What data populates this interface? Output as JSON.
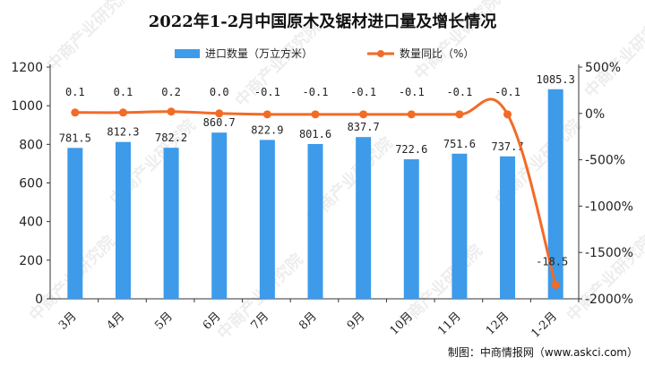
{
  "chart_data": {
    "type": "bar+line",
    "title": "2022年1-2月中国原木及锯材进口量及增长情况",
    "categories": [
      "3月",
      "4月",
      "5月",
      "6月",
      "7月",
      "8月",
      "9月",
      "10月",
      "11月",
      "12月",
      "1-2月"
    ],
    "series": [
      {
        "name": "进口数量（万立方米）",
        "type": "bar",
        "axis": "left",
        "values": [
          781.5,
          812.3,
          782.2,
          860.7,
          822.9,
          801.6,
          837.7,
          722.6,
          751.6,
          737.7,
          1085.3
        ],
        "labels": [
          "781.5",
          "812.3",
          "782.2",
          "860.7",
          "822.9",
          "801.6",
          "837.7",
          "722.6",
          "751.6",
          "737.7",
          "1085.3"
        ]
      },
      {
        "name": "数量同比（%）",
        "type": "line",
        "axis": "right",
        "values": [
          0.1,
          0.1,
          0.2,
          0.0,
          -0.1,
          -0.1,
          -0.1,
          -0.1,
          -0.1,
          -0.1,
          -18.5
        ],
        "labels": [
          "0.1",
          "0.1",
          "0.2",
          "0.0",
          "-0.1",
          "-0.1",
          "-0.1",
          "-0.1",
          "-0.1",
          "-0.1",
          "-18.5"
        ]
      }
    ],
    "y_left": {
      "min": 0,
      "max": 1200,
      "ticks": [
        "0",
        "200",
        "400",
        "600",
        "800",
        "1000",
        "1200"
      ]
    },
    "y_right": {
      "min": -20,
      "max": 5,
      "ticks": [
        "500%",
        "0%",
        "-500%",
        "-1000%",
        "-1500%",
        "-2000%"
      ]
    },
    "legend_position": "top",
    "grid": false
  },
  "source": "制图：中商情报网（www.askci.com）",
  "watermark": "中商产业研究院",
  "colors": {
    "bar": "#3d9be9",
    "line": "#f26b27",
    "text": "#222222"
  }
}
